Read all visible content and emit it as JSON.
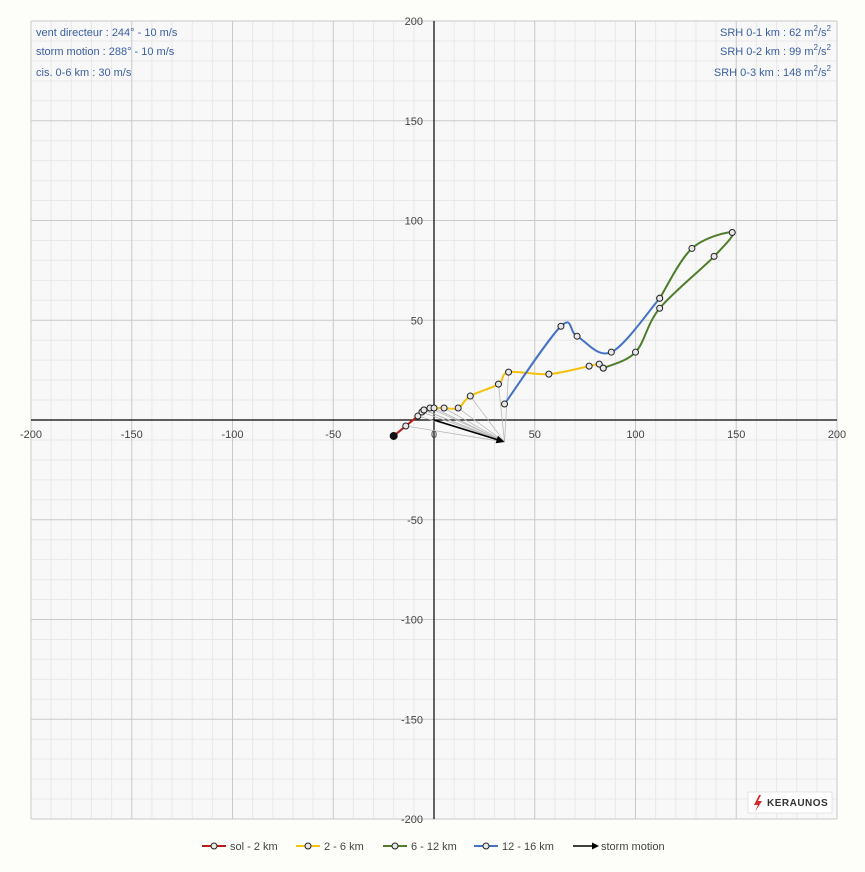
{
  "chart_data": {
    "type": "line",
    "subtype": "hodograph",
    "xlim": [
      -200,
      200
    ],
    "ylim": [
      -200,
      200
    ],
    "x_ticks": [
      -200,
      -150,
      -100,
      -50,
      0,
      50,
      100,
      150,
      200
    ],
    "y_ticks": [
      200,
      150,
      100,
      50,
      -50,
      -100,
      -150,
      -200
    ],
    "grid": true,
    "info_left": [
      "vent directeur : 244°  -  10 m/s",
      "storm motion : 288°  -  10 m/s",
      "cis. 0-6 km : 30 m/s"
    ],
    "info_right": [
      {
        "label": "SRH 0-1 km : 62 m",
        "sup": "2",
        "mid": "/s",
        "sup2": "2"
      },
      {
        "label": "SRH 0-2 km : 99 m",
        "sup": "2",
        "mid": "/s",
        "sup2": "2"
      },
      {
        "label": "SRH 0-3 km : 148 m",
        "sup": "2",
        "mid": "/s",
        "sup2": "2"
      }
    ],
    "series": [
      {
        "name": "sol - 2 km",
        "color": "#b71c1c",
        "points": [
          [
            -20,
            -8
          ],
          [
            -14,
            -3
          ],
          [
            -8,
            2
          ],
          [
            -6,
            4
          ],
          [
            -5,
            5
          ]
        ]
      },
      {
        "name": "2 - 6 km",
        "color": "#f4c20d",
        "points": [
          [
            -5,
            5
          ],
          [
            -2,
            6
          ],
          [
            0,
            6
          ],
          [
            5,
            6
          ],
          [
            12,
            6
          ],
          [
            18,
            12
          ],
          [
            32,
            18
          ],
          [
            37,
            24
          ],
          [
            57,
            23
          ],
          [
            77,
            27
          ],
          [
            82,
            28
          ],
          [
            84,
            26
          ]
        ]
      },
      {
        "name": "6 - 12 km",
        "color": "#4e7d2c",
        "points": [
          [
            84,
            26
          ],
          [
            100,
            34
          ],
          [
            112,
            56
          ],
          [
            139,
            82
          ],
          [
            148,
            94
          ],
          [
            128,
            86
          ],
          [
            112,
            61
          ]
        ]
      },
      {
        "name": "12 - 16 km",
        "color": "#4472c4",
        "points": [
          [
            112,
            61
          ],
          [
            88,
            34
          ],
          [
            71,
            42
          ],
          [
            63,
            47
          ],
          [
            35,
            8
          ]
        ]
      }
    ],
    "start_point": [
      -20,
      -8
    ],
    "storm_motion": {
      "name": "storm motion",
      "color": "#000000",
      "point": [
        35,
        -11
      ]
    }
  },
  "branding": {
    "logo_text": "KERAUNOS",
    "accent": "#d62b2b"
  }
}
